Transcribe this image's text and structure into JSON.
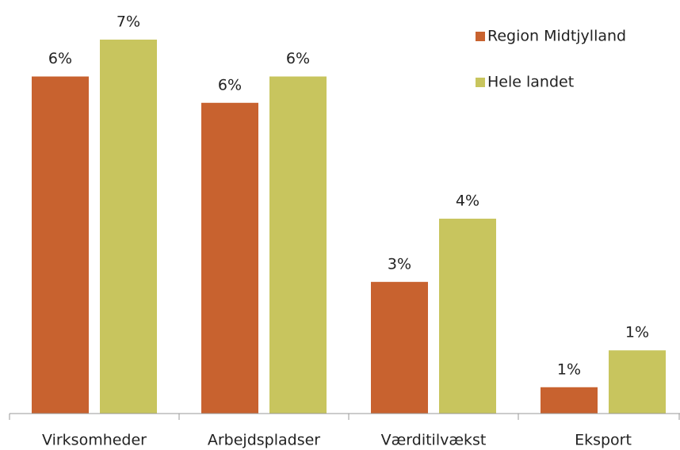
{
  "chart_data": {
    "type": "bar",
    "categories": [
      "Virksomheder",
      "Arbejdspladser",
      "Værditilvækst",
      "Eksport"
    ],
    "series": [
      {
        "name": "Region Midtjylland",
        "color": "#c8622f",
        "values": [
          6.4,
          5.9,
          2.5,
          0.5
        ],
        "value_labels": [
          "6%",
          "6%",
          "3%",
          "1%"
        ]
      },
      {
        "name": "Hele landet",
        "color": "#c8c55e",
        "values": [
          7.1,
          6.4,
          3.7,
          1.2
        ],
        "value_labels": [
          "7%",
          "6%",
          "4%",
          "1%"
        ]
      }
    ],
    "legend": "top-right"
  }
}
